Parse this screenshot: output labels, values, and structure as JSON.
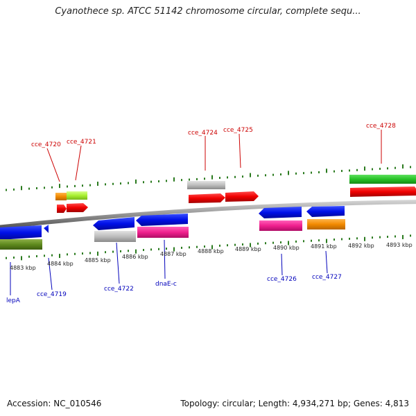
{
  "title": "Cyanothece sp. ATCC 51142 chromosome circular, complete sequ...",
  "footer": {
    "accession": "Accession: NC_010546",
    "summary": "Topology: circular; Length: 4,934,271 bp; Genes: 4,813"
  },
  "colors": {
    "tick": "#2a7a1e",
    "top_label": "#cc0000",
    "bottom_label": "#0000bb"
  },
  "kbp_labels": [
    "4883 kbp",
    "4884 kbp",
    "4885 kbp",
    "4886 kbp",
    "4887 kbp",
    "4888 kbp",
    "4889 kbp",
    "4890 kbp",
    "4891 kbp",
    "4892 kbp",
    "4893 kbp"
  ],
  "top_genes": [
    "cce_4720",
    "cce_4721",
    "cce_4724",
    "cce_4725",
    "cce_4728"
  ],
  "bottom_genes": [
    "lepA",
    "cce_4719",
    "cce_4722",
    "dnaE-c",
    "cce_4726",
    "cce_4727"
  ]
}
